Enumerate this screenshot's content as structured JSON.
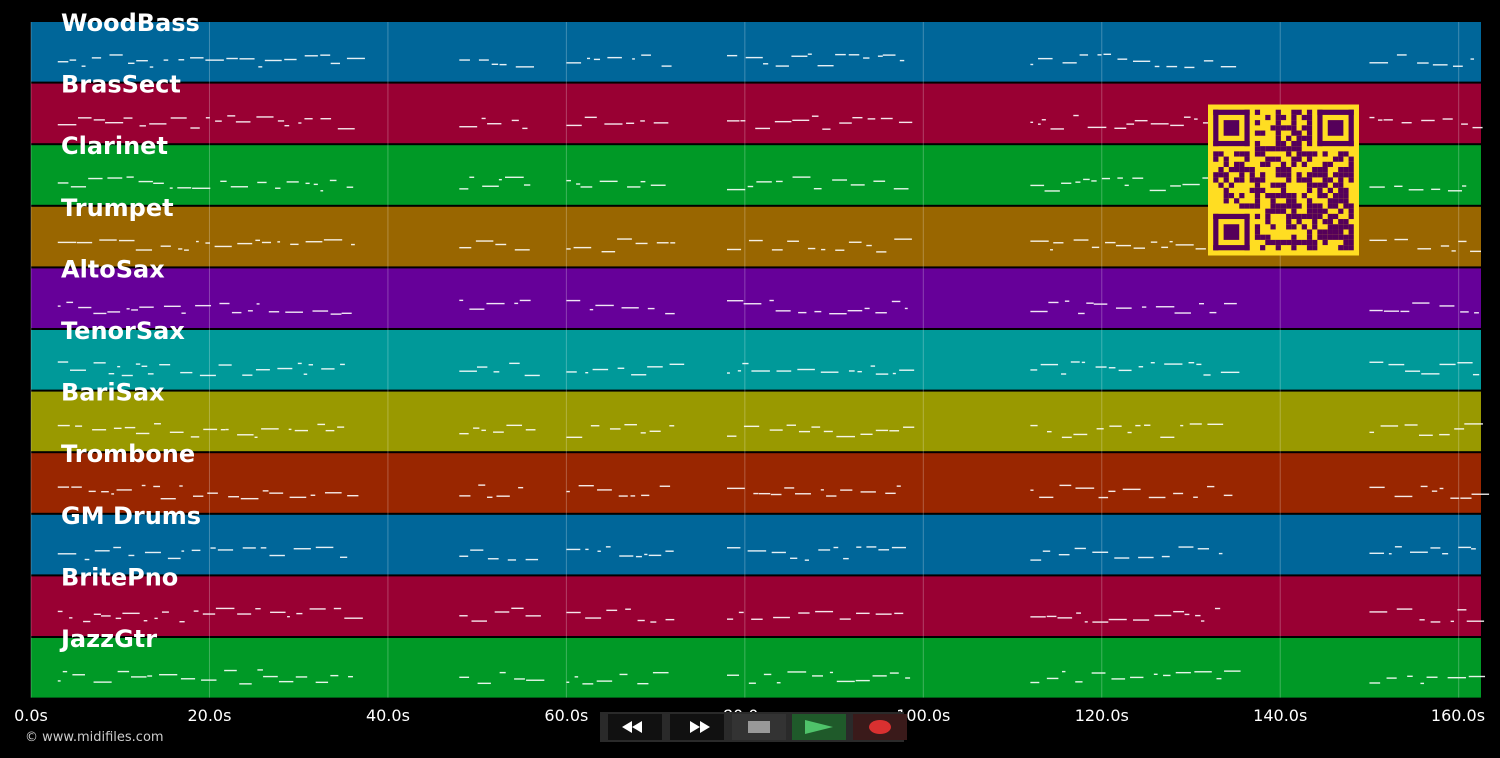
{
  "timeline": {
    "ticks": [
      "0.0s",
      "20.0s",
      "40.0s",
      "60.0s",
      "80.0s",
      "100.0s",
      "120.0s",
      "140.0s",
      "160.0s"
    ],
    "tick_values": [
      0,
      20,
      40,
      60,
      80,
      100,
      120,
      140,
      160
    ]
  },
  "tracks": [
    {
      "name": "WoodBass",
      "color": "#006699"
    },
    {
      "name": "BrasSect",
      "color": "#990033"
    },
    {
      "name": "Clarinet",
      "color": "#009926"
    },
    {
      "name": "Trumpet",
      "color": "#996600"
    },
    {
      "name": "AltoSax",
      "color": "#660099"
    },
    {
      "name": "TenorSax",
      "color": "#009999"
    },
    {
      "name": "BariSax",
      "color": "#999900"
    },
    {
      "name": "Trombone",
      "color": "#992600"
    },
    {
      "name": "GM Drums",
      "color": "#006699"
    },
    {
      "name": "BritePno",
      "color": "#990033"
    },
    {
      "name": "JazzGtr",
      "color": "#009926"
    }
  ],
  "copyright": "© www.midifiles.com",
  "transport": {
    "buttons": [
      {
        "name": "rewind-button",
        "icon": "rewind-icon"
      },
      {
        "name": "fast-forward-button",
        "icon": "fast-forward-icon"
      },
      {
        "name": "stop-button",
        "icon": "stop-icon"
      },
      {
        "name": "play-button",
        "icon": "play-icon"
      },
      {
        "name": "record-button",
        "icon": "record-icon"
      }
    ]
  },
  "qr_code": {
    "icon": "qr-code-icon",
    "fg": "#55005a",
    "bg": "#ffdd22"
  }
}
